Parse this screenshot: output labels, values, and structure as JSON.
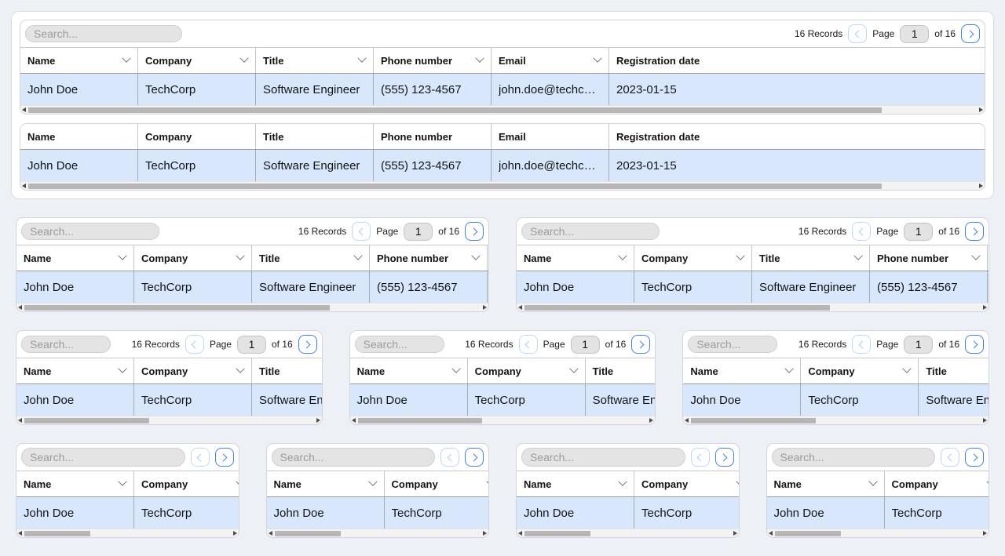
{
  "search": {
    "placeholder": "Search..."
  },
  "pagination": {
    "records": "16 Records",
    "page_label": "Page",
    "current_page": "1",
    "of_total": "of 16"
  },
  "table": {
    "columns": [
      "Name",
      "Company",
      "Title",
      "Phone number",
      "Email",
      "Registration date"
    ],
    "row": {
      "name": "John Doe",
      "company": "TechCorp",
      "title": "Software Engineer",
      "phone": "(555) 123-4567",
      "email": "john.doe@techcor…",
      "registration_date": "2023-01-15"
    }
  },
  "colors": {
    "page_bg": "#edf1f6",
    "card_bg": "#ffffff",
    "selected_row_bg": "#d8e7fc",
    "accent_blue": "#3f82ef",
    "disabled_blue": "#a9cdf4",
    "input_bg": "#e3e3e3"
  }
}
